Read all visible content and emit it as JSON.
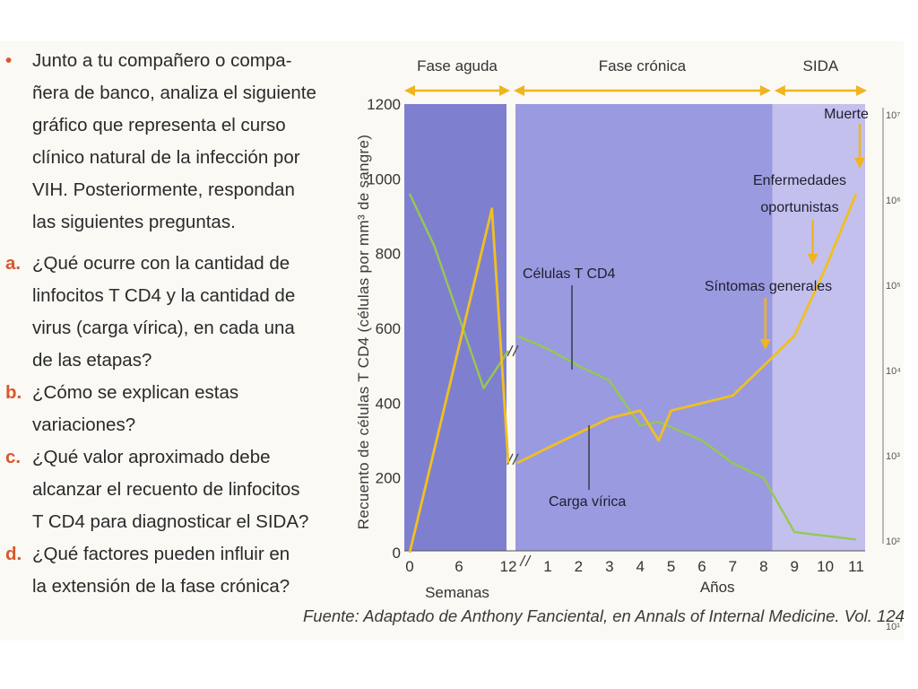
{
  "intro": {
    "lines": [
      "Junto a tu compañero o compa-",
      "ñera de banco, analiza el siguiente",
      "gráfico que representa el curso",
      "clínico natural de la infección por",
      "VIH. Posteriormente, respondan",
      "las siguientes preguntas."
    ]
  },
  "questions": [
    {
      "letter": "a.",
      "lines": [
        "¿Qué ocurre con la cantidad de",
        "linfocitos T CD4 y la cantidad de",
        "virus (carga vírica), en cada una",
        "de las etapas?"
      ]
    },
    {
      "letter": "b.",
      "lines": [
        "¿Cómo se explican estas",
        "variaciones?"
      ]
    },
    {
      "letter": "c.",
      "lines": [
        "¿Qué valor aproximado debe",
        "alcanzar el recuento de linfocitos",
        "T CD4 para diagnosticar el SIDA?"
      ]
    },
    {
      "letter": "d.",
      "lines": [
        "¿Qué factores pueden influir en",
        "la extensión de la fase crónica?"
      ]
    }
  ],
  "source": "Fuente: Adaptado de Anthony Fanciental, en Annals of Internal Medicine. Vol. 124",
  "colors": {
    "accent": "#d8582a",
    "acute_phase": "#7f7fd0",
    "chronic_phase": "#9a9ae0",
    "aids_phase": "#c3c0ee",
    "cd4_line": "#96c850",
    "viral_line": "#f0c020",
    "arrow": "#f0b41e"
  },
  "chart_data": {
    "type": "line",
    "ylabel": "Recuento de células T CD4 (células por mm³ de sangre)",
    "ylim": [
      0,
      1200
    ],
    "yticks": [
      0,
      200,
      400,
      600,
      800,
      1000,
      1200
    ],
    "right_axis_ticks": [
      "10⁷",
      "10⁶",
      "10⁵",
      "10⁴",
      "10³",
      "10²",
      "10¹"
    ],
    "x_axis": [
      {
        "unit": "Semanas",
        "ticks": [
          0,
          6,
          12
        ]
      },
      {
        "unit": "Años",
        "ticks": [
          1,
          2,
          3,
          4,
          5,
          6,
          7,
          8,
          9,
          10,
          11
        ]
      }
    ],
    "phases": [
      {
        "label": "Fase aguda",
        "from": "Semanas 0",
        "to": "Semanas 12"
      },
      {
        "label": "Fase crónica",
        "from": "Años 0",
        "to": "Años 8"
      },
      {
        "label": "SIDA",
        "from": "Años 8",
        "to": "Años 11"
      }
    ],
    "series": [
      {
        "name": "Células T CD4",
        "weeks": [
          [
            0,
            960
          ],
          [
            3,
            820
          ],
          [
            9,
            440
          ],
          [
            12,
            540
          ]
        ],
        "years": [
          [
            0,
            580
          ],
          [
            1,
            545
          ],
          [
            2,
            500
          ],
          [
            3,
            460
          ],
          [
            4,
            340
          ],
          [
            4.6,
            350
          ],
          [
            6,
            300
          ],
          [
            7,
            240
          ],
          [
            8,
            200
          ],
          [
            9,
            55
          ],
          [
            11,
            35
          ]
        ]
      },
      {
        "name": "Carga vírica",
        "weeks": [
          [
            0,
            0
          ],
          [
            10,
            920
          ],
          [
            12,
            240
          ]
        ],
        "years": [
          [
            0,
            240
          ],
          [
            1,
            280
          ],
          [
            2,
            320
          ],
          [
            3,
            360
          ],
          [
            4,
            380
          ],
          [
            4.6,
            300
          ],
          [
            5,
            380
          ],
          [
            7,
            420
          ],
          [
            8,
            500
          ],
          [
            9,
            580
          ],
          [
            10,
            760
          ],
          [
            11,
            960
          ]
        ]
      }
    ],
    "annotations": [
      {
        "text": "Células T CD4",
        "target": "Células T CD4"
      },
      {
        "text": "Carga vírica",
        "target": "Carga vírica"
      },
      {
        "text": "Síntomas generales",
        "at_year": 8
      },
      {
        "text": "Enfermedades",
        "text2": "oportunistas",
        "at_year": 10
      },
      {
        "text": "Muerte",
        "at_year": 11
      }
    ]
  }
}
